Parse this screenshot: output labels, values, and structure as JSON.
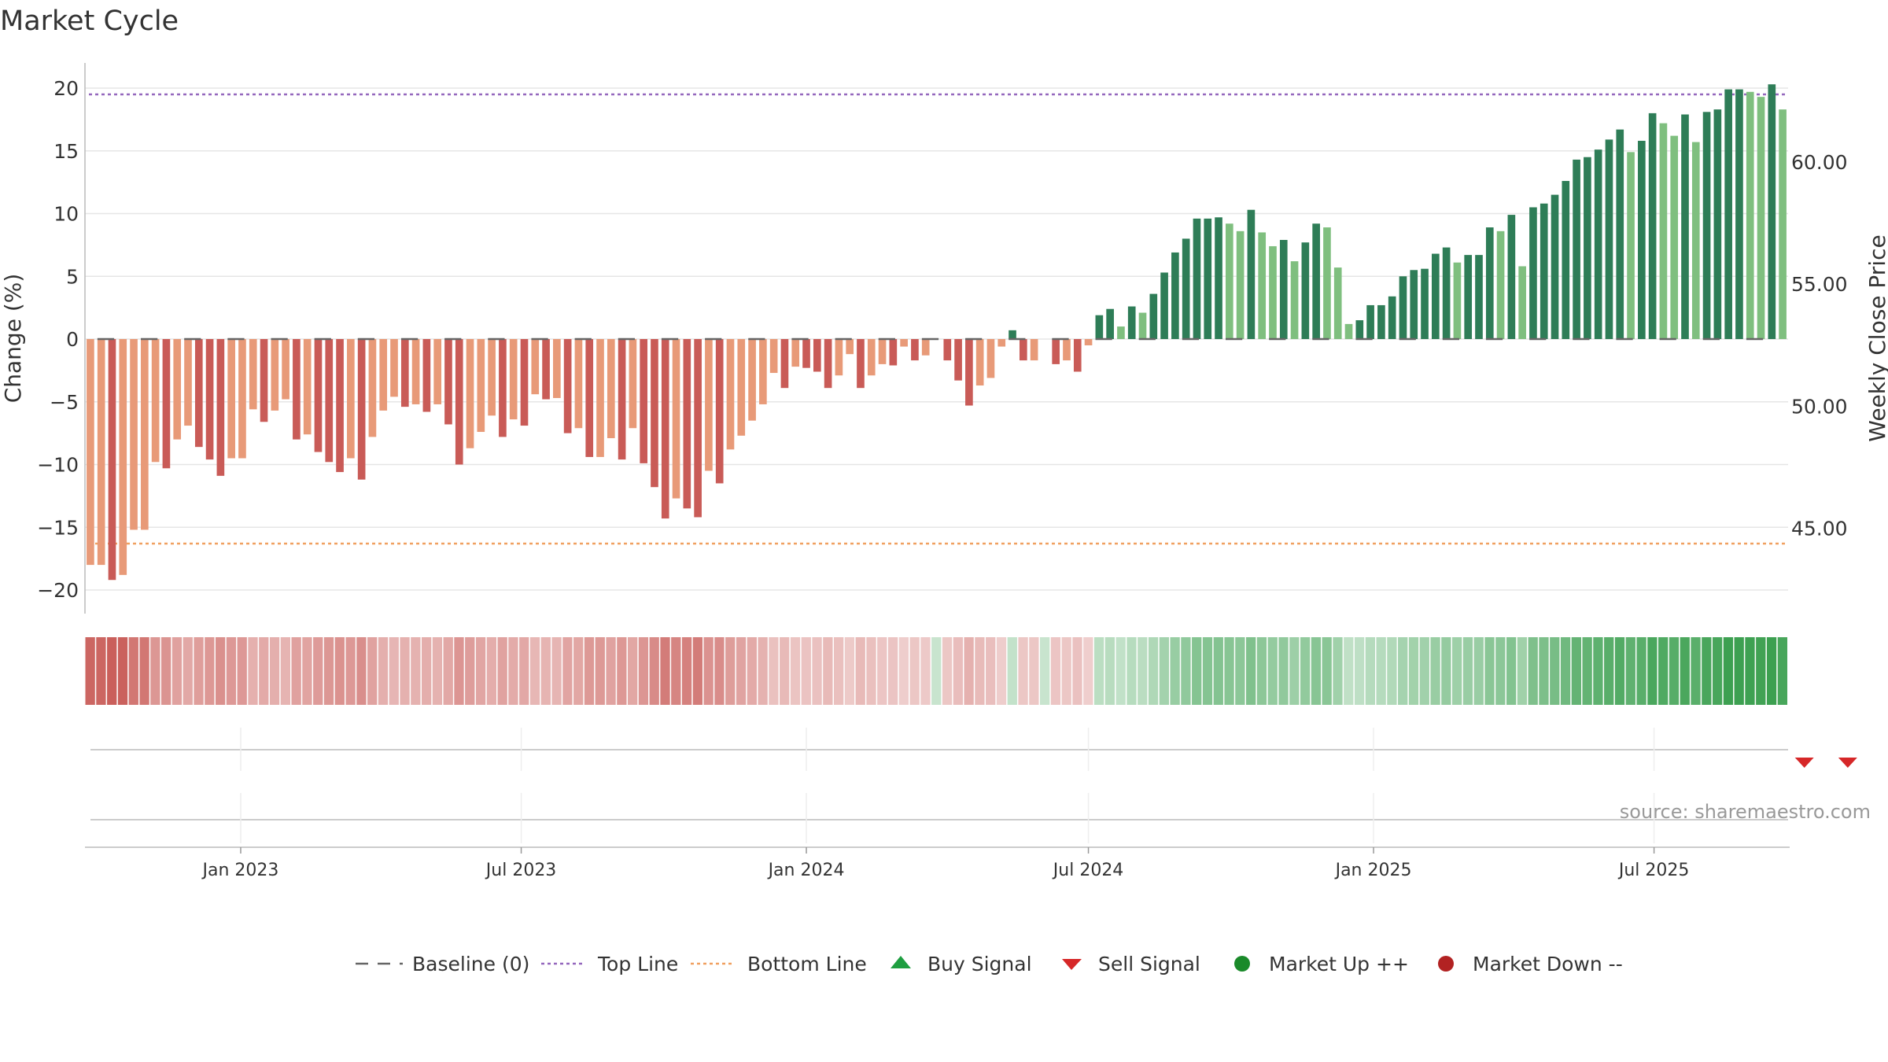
{
  "title": "Market Cycle",
  "source": "source: sharemaestro.com",
  "colors": {
    "down_dark": "#c95b57",
    "down_light": "#e89a78",
    "up_dark": "#2e7d57",
    "up_light": "#7fbf7f",
    "top_line": "#9467bd",
    "bottom_line": "#f0a060",
    "baseline": "#666666",
    "buy": "#1e9e40",
    "sell": "#d62728",
    "market_up": "#1a8a2a",
    "market_down": "#b22222",
    "grid": "#e6e6e6"
  },
  "legend": [
    {
      "label": "Baseline (0)",
      "icon": "dash-line-icon"
    },
    {
      "label": "Top Line",
      "icon": "dotted-purple-line-icon"
    },
    {
      "label": "Bottom Line",
      "icon": "dotted-orange-line-icon"
    },
    {
      "label": "Buy Signal",
      "icon": "triangle-up-icon"
    },
    {
      "label": "Sell Signal",
      "icon": "triangle-down-icon"
    },
    {
      "label": "Market Up ++",
      "icon": "green-dot-icon"
    },
    {
      "label": "Market Down --",
      "icon": "red-dot-icon"
    }
  ],
  "chart_data": {
    "type": "bar",
    "title": "Market Cycle",
    "ylabel": "Change (%)",
    "y2label": "Weekly Close Price",
    "ylim": [
      -22,
      22
    ],
    "y_ticks": [
      -20,
      -15,
      -10,
      -5,
      0,
      5,
      10,
      15,
      20
    ],
    "y2_ticks": [
      "45.00",
      "50.00",
      "55.00",
      "60.00"
    ],
    "y2_tick_values": [
      45,
      50,
      55,
      60
    ],
    "y2lim": [
      41.45,
      64.05
    ],
    "x_start": "2022-09-26",
    "x_ticks": [
      {
        "label": "Jan 2023",
        "date": "2023-01-01"
      },
      {
        "label": "Jul 2023",
        "date": "2023-07-01"
      },
      {
        "label": "Jan 2024",
        "date": "2024-01-01"
      },
      {
        "label": "Jul 2024",
        "date": "2024-07-01"
      },
      {
        "label": "Jan 2025",
        "date": "2025-01-01"
      },
      {
        "label": "Jul 2025",
        "date": "2025-07-01"
      }
    ],
    "top_line": 19.5,
    "bottom_line": -16.3,
    "baseline": 0,
    "values": [
      -18.0,
      -18.0,
      -19.2,
      -18.8,
      -15.2,
      -15.2,
      -9.8,
      -10.3,
      -8.0,
      -6.9,
      -8.6,
      -9.6,
      -10.9,
      -9.5,
      -9.5,
      -5.6,
      -6.6,
      -5.7,
      -4.8,
      -8.0,
      -7.6,
      -9.0,
      -9.8,
      -10.6,
      -9.5,
      -11.2,
      -7.8,
      -5.7,
      -4.6,
      -5.4,
      -5.2,
      -5.8,
      -5.2,
      -6.8,
      -10.0,
      -8.7,
      -7.4,
      -6.1,
      -7.8,
      -6.4,
      -6.9,
      -4.4,
      -4.8,
      -4.7,
      -7.5,
      -7.1,
      -9.4,
      -9.4,
      -7.9,
      -9.6,
      -7.1,
      -9.9,
      -11.8,
      -14.3,
      -12.7,
      -13.5,
      -14.2,
      -10.5,
      -11.5,
      -8.8,
      -7.7,
      -6.5,
      -5.2,
      -2.7,
      -3.9,
      -2.2,
      -2.3,
      -2.6,
      -3.9,
      -2.9,
      -1.2,
      -3.9,
      -2.9,
      -2.0,
      -2.1,
      -0.6,
      -1.7,
      -1.3,
      0,
      -1.7,
      -3.3,
      -5.3,
      -3.7,
      -3.1,
      -0.6,
      0.7,
      -1.7,
      -1.7,
      0,
      -2.0,
      -1.7,
      -2.6,
      -0.5,
      1.9,
      2.4,
      1.0,
      2.6,
      2.1,
      3.6,
      5.3,
      6.9,
      8.0,
      9.6,
      9.6,
      9.7,
      9.2,
      8.6,
      10.3,
      8.5,
      7.4,
      7.9,
      6.2,
      7.7,
      9.2,
      8.9,
      5.7,
      1.2,
      1.5,
      2.7,
      2.7,
      3.4,
      5.0,
      5.5,
      5.6,
      6.8,
      7.3,
      6.1,
      6.7,
      6.7,
      8.9,
      8.6,
      9.9,
      5.8,
      10.5,
      10.8,
      11.5,
      12.6,
      14.3,
      14.5,
      15.1,
      15.9,
      16.7,
      14.9,
      15.8,
      18.0,
      17.2,
      16.2,
      17.9,
      15.7,
      18.1,
      18.3,
      19.9,
      19.9,
      19.7,
      19.3,
      20.3,
      18.3
    ],
    "colour_band": {
      "levels_shown_as_fill": true
    },
    "sell_signals": [
      {
        "date": "2025-10-06"
      },
      {
        "date": "2025-11-03"
      }
    ],
    "buy_signals": [],
    "grid": true,
    "legend_position": "bottom"
  }
}
